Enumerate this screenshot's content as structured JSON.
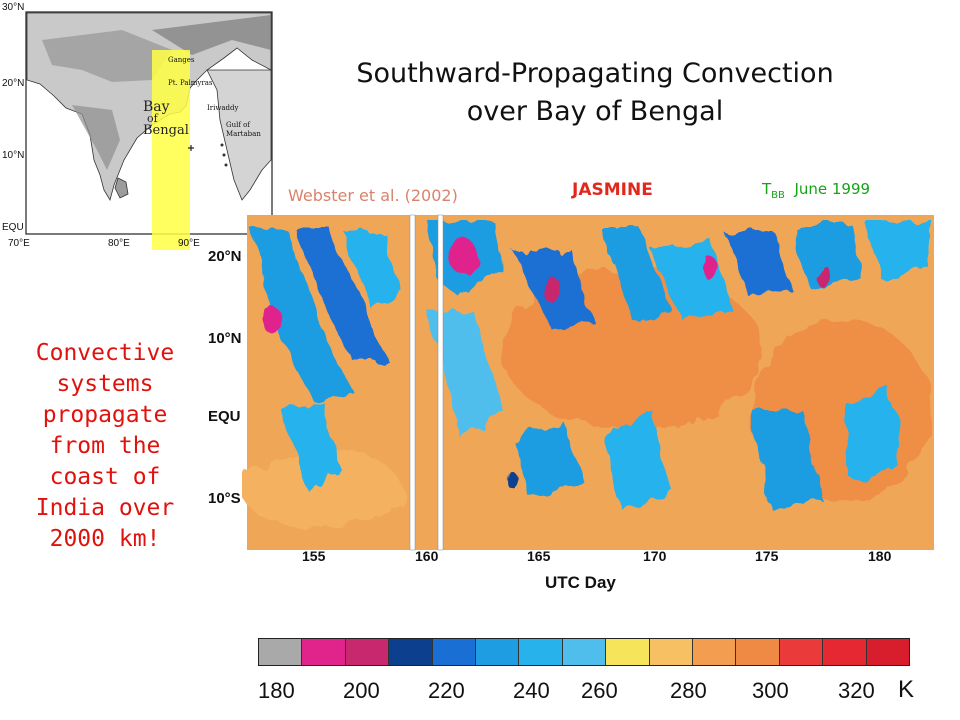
{
  "title": {
    "line1": "Southward-Propagating Convection",
    "line2": "over Bay of Bengal"
  },
  "citation": "Webster et al. (2002)",
  "campaign": "JASMINE",
  "tbb": {
    "symbol": "T",
    "subscript": "BB",
    "period": "June 1999"
  },
  "side_note": {
    "lines": [
      "Convective",
      "systems",
      "propagate",
      "from the",
      "coast of",
      "India over",
      "2000 km!"
    ]
  },
  "map": {
    "lat_labels": [
      "30°N",
      "20°N",
      "10°N",
      "EQU"
    ],
    "lon_labels": [
      "70°E",
      "80°E",
      "90°E"
    ],
    "place_labels": [
      "Ganges",
      "Pt. Palmyras",
      "Bay",
      "of",
      "Bengal",
      "Iriwaddy",
      "Gulf of",
      "Martaban"
    ],
    "highlight_color": "#ffff44"
  },
  "plot": {
    "y_labels": [
      "20°N",
      "10°N",
      "EQU",
      "10°S"
    ],
    "x_labels": [
      "155",
      "160",
      "165",
      "170",
      "175",
      "180"
    ],
    "x_title": "UTC Day"
  },
  "colorbar": {
    "colors": [
      "#a9a9a9",
      "#e0248c",
      "#c8286e",
      "#0d3f8f",
      "#1a6fd4",
      "#1f9de2",
      "#27b2ec",
      "#4fbeec",
      "#f6e45a",
      "#f6c063",
      "#f29d4f",
      "#ef8a45",
      "#ea3a3a",
      "#e62832",
      "#d81e2d"
    ],
    "tick_labels": [
      "180",
      "200",
      "220",
      "240",
      "260",
      "280",
      "300",
      "320"
    ],
    "unit": "K"
  },
  "colors": {
    "title": "#111111",
    "citation": "#d9826b",
    "campaign": "#e2281c",
    "tbb": "#16a316",
    "note": "#e0120e"
  }
}
